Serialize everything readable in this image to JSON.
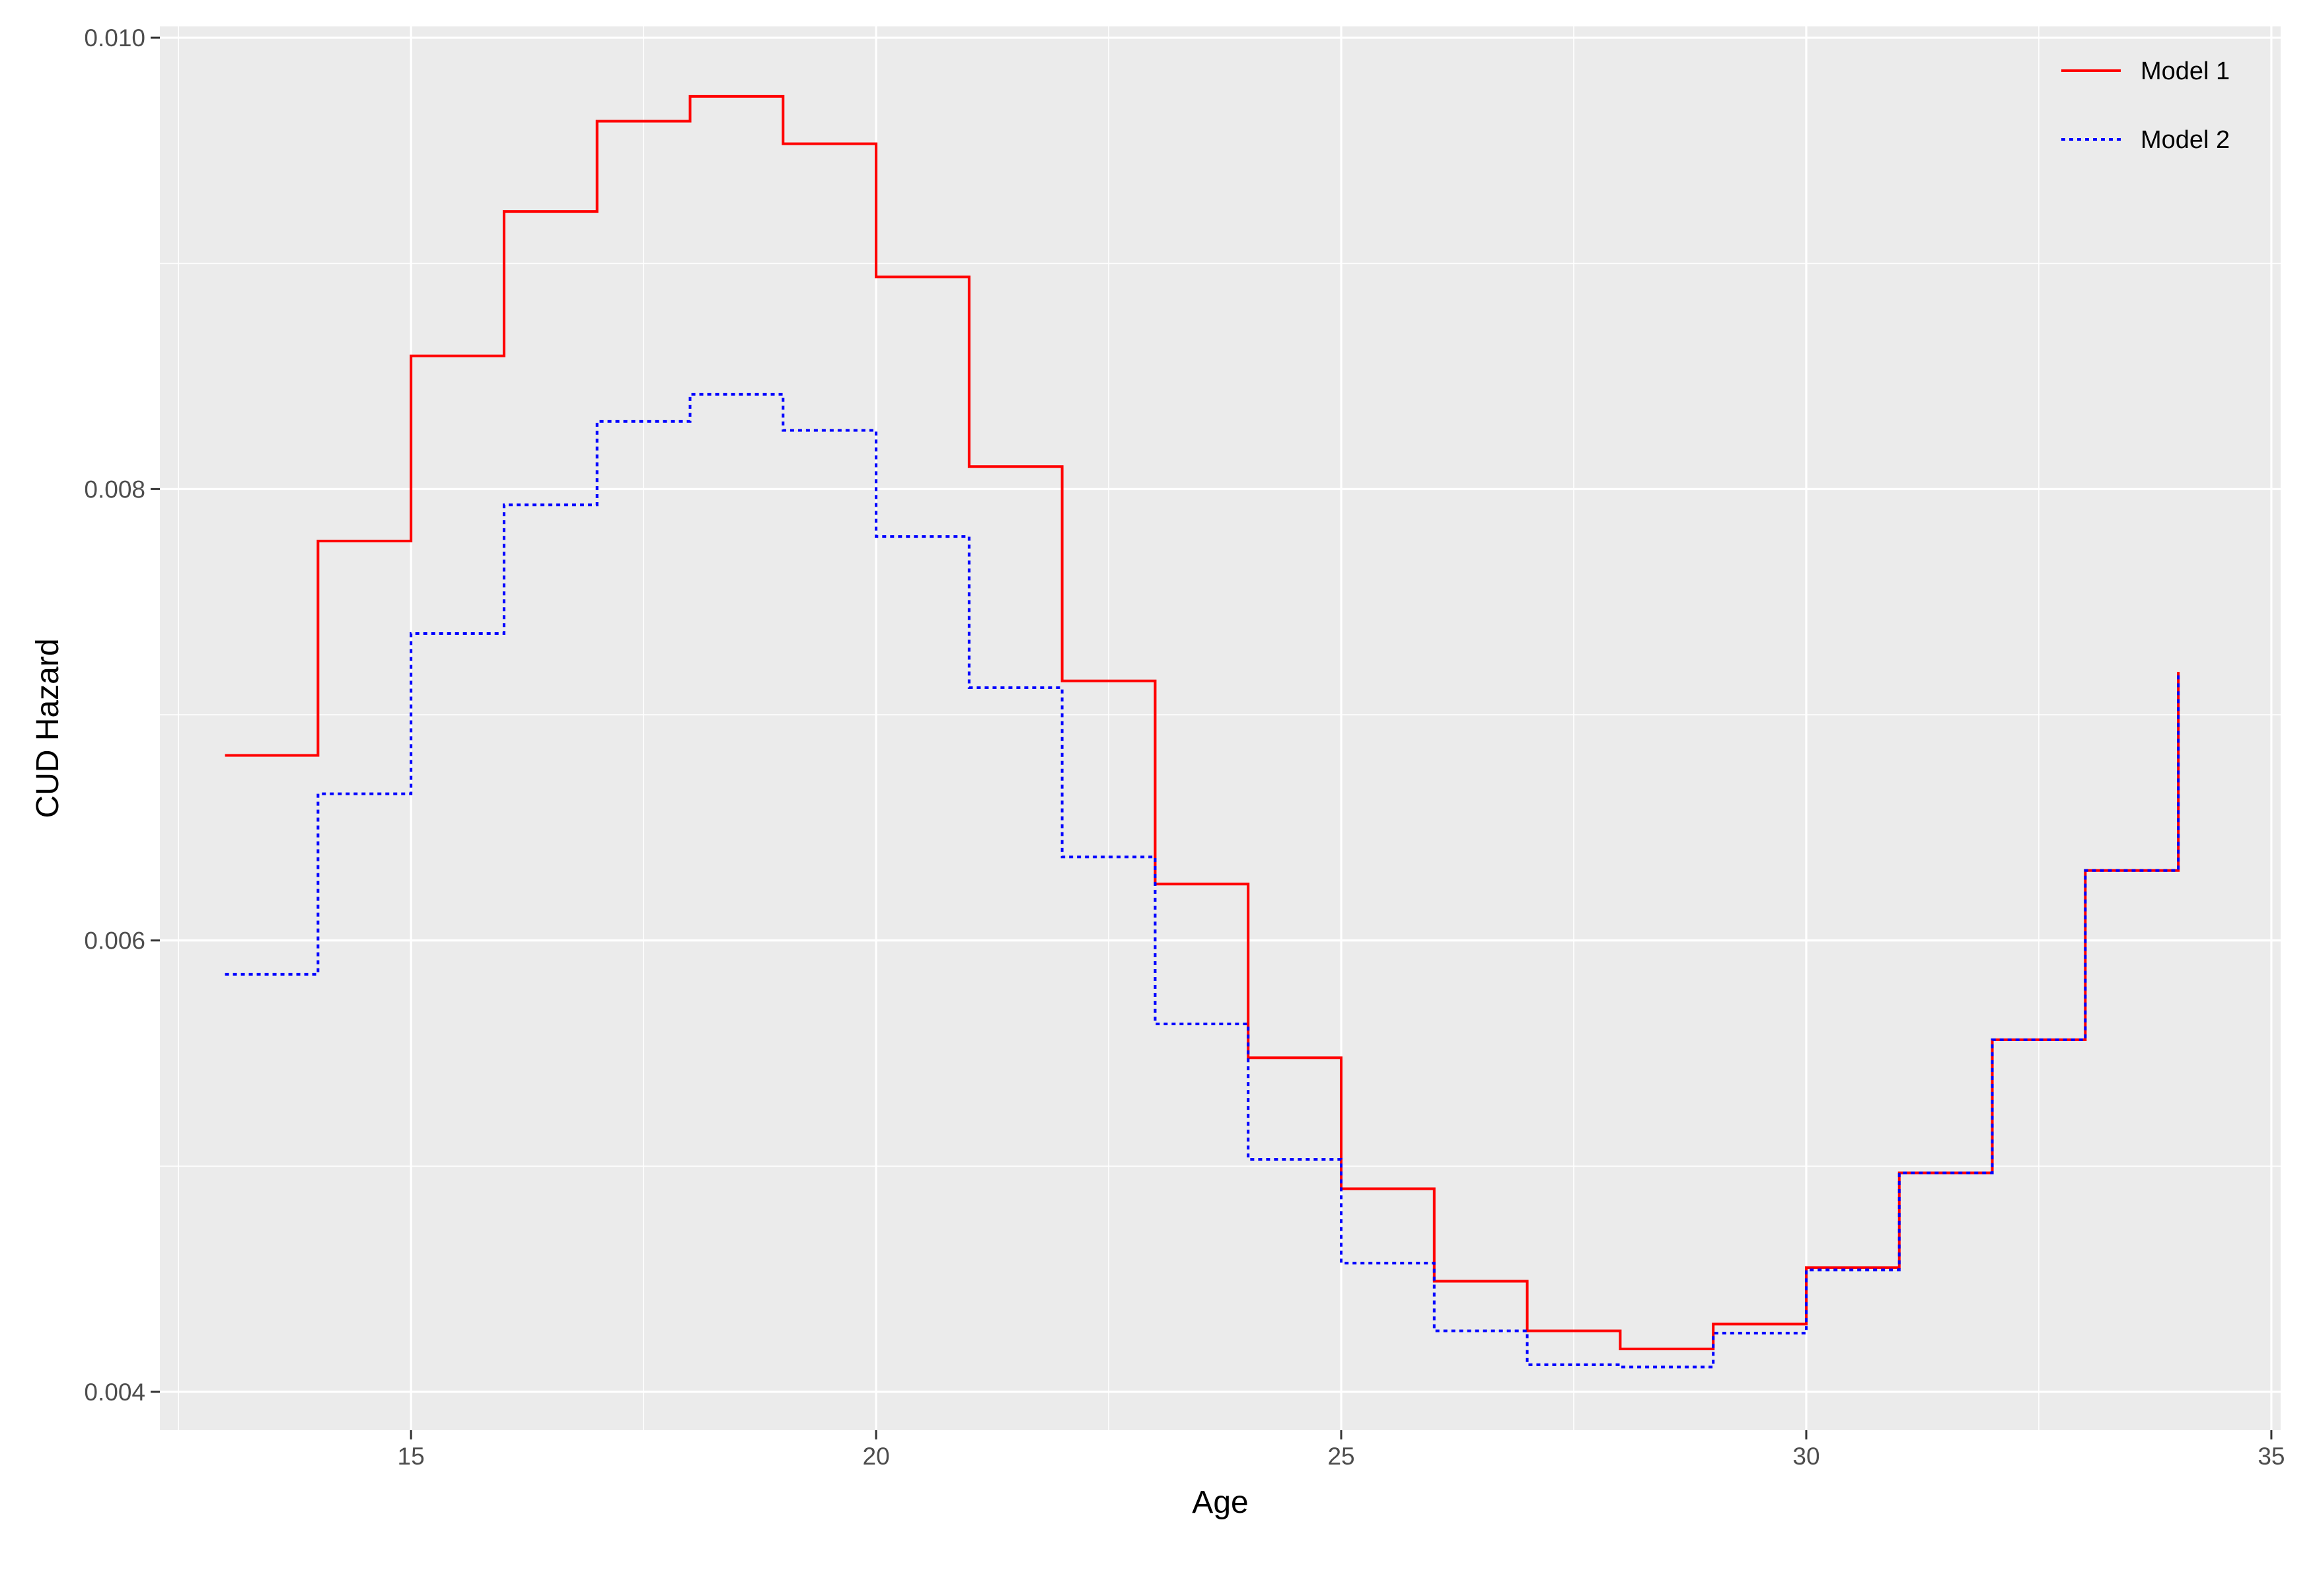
{
  "chart_data": {
    "type": "line",
    "step": "post",
    "title": "",
    "xlabel": "Age",
    "ylabel": "CUD Hazard",
    "xlim": [
      12.3,
      35.1
    ],
    "ylim": [
      0.00383,
      0.01005
    ],
    "x_major_ticks": [
      15,
      20,
      25,
      30,
      35
    ],
    "x_minor_ticks": [
      12.5,
      17.5,
      22.5,
      27.5,
      32.5
    ],
    "y_major_ticks": [
      0.004,
      0.006,
      0.008,
      0.01
    ],
    "y_minor_ticks": [
      0.005,
      0.007,
      0.009
    ],
    "x_tick_labels": [
      "15",
      "20",
      "25",
      "30",
      "35"
    ],
    "y_tick_labels": [
      "0.004",
      "0.006",
      "0.008",
      "0.010"
    ],
    "grid": true,
    "legend_position": "top-right",
    "x": [
      13,
      14,
      15,
      16,
      17,
      18,
      19,
      20,
      21,
      22,
      23,
      24,
      25,
      26,
      27,
      28,
      29,
      30,
      31,
      32,
      33,
      34
    ],
    "series": [
      {
        "name": "Model 1",
        "color": "#ff0000",
        "linetype": "solid",
        "values": [
          0.00682,
          0.00777,
          0.00859,
          0.00923,
          0.00963,
          0.00974,
          0.00953,
          0.00894,
          0.0081,
          0.00715,
          0.00625,
          0.00548,
          0.0049,
          0.00449,
          0.00427,
          0.00419,
          0.0043,
          0.00455,
          0.00497,
          0.00556,
          0.00631,
          0.00719
        ]
      },
      {
        "name": "Model 2",
        "color": "#0000ff",
        "linetype": "dotted",
        "values": [
          0.00585,
          0.00665,
          0.00736,
          0.00793,
          0.0083,
          0.00842,
          0.00826,
          0.00779,
          0.00712,
          0.00637,
          0.00563,
          0.00503,
          0.00457,
          0.00427,
          0.00412,
          0.00411,
          0.00426,
          0.00454,
          0.00497,
          0.00556,
          0.00631,
          0.00719
        ]
      }
    ]
  }
}
